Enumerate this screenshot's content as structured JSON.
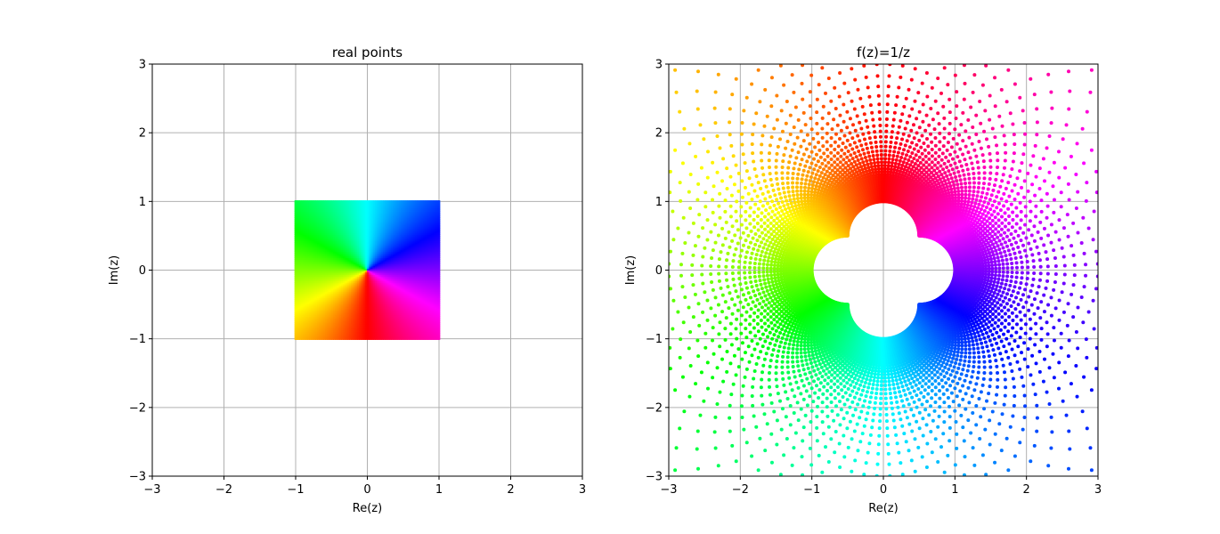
{
  "chart_data": [
    {
      "type": "scatter",
      "title": "real points",
      "xlabel": "Re(z)",
      "ylabel": "Im(z)",
      "xlim": [
        -3,
        3
      ],
      "ylim": [
        -3,
        3
      ],
      "xticks": [
        -3,
        -2,
        -1,
        0,
        1,
        2,
        3
      ],
      "yticks": [
        -3,
        -2,
        -1,
        0,
        1,
        2,
        3
      ],
      "grid": true,
      "color_encoding": "hue = arg(z)",
      "series": [
        {
          "description_points": "grid of complex z with Re in [-1,1], Im in [-1,1]",
          "re_range": [
            -1,
            1
          ],
          "im_range": [
            -1,
            1
          ]
        }
      ]
    },
    {
      "type": "scatter",
      "title": "f(z)=1/z",
      "xlabel": "Re(z)",
      "ylabel": "Im(z)",
      "xlim": [
        -3,
        3
      ],
      "ylim": [
        -3,
        3
      ],
      "xticks": [
        -3,
        -2,
        -1,
        0,
        1,
        2,
        3
      ],
      "yticks": [
        -3,
        -2,
        -1,
        0,
        1,
        2,
        3
      ],
      "grid": true,
      "color_encoding": "hue = arg(z) of source point",
      "series": [
        {
          "description_points": "images w = 1/z of the square grid",
          "re_range": [
            -1,
            1
          ],
          "im_range": [
            -1,
            1
          ]
        }
      ]
    }
  ]
}
